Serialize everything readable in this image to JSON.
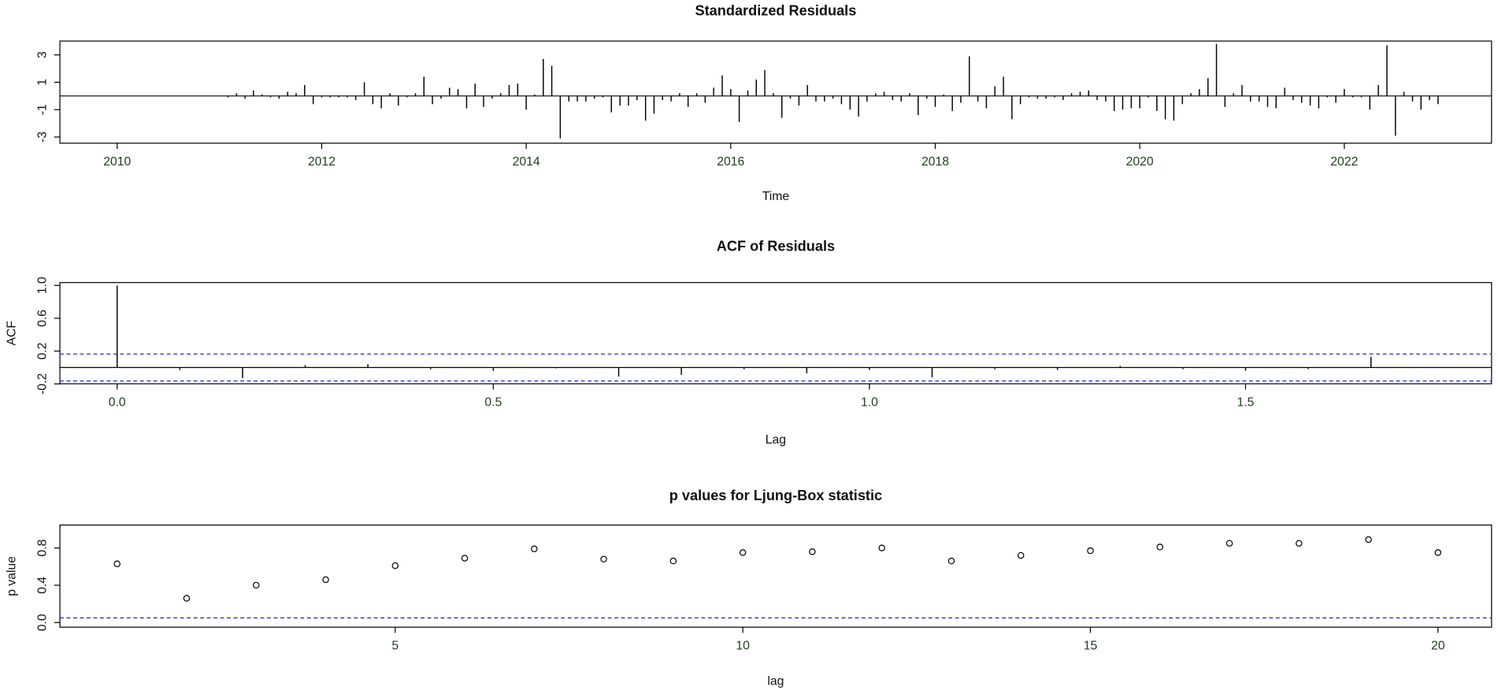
{
  "chart_data": [
    {
      "type": "spike",
      "title": "Standardized Residuals",
      "xlabel": "Time",
      "color": "#000000",
      "x": [
        2011.083,
        2011.167,
        2011.25,
        2011.333,
        2011.417,
        2011.5,
        2011.583,
        2011.667,
        2011.75,
        2011.833,
        2011.917,
        2012,
        2012.083,
        2012.167,
        2012.25,
        2012.333,
        2012.417,
        2012.5,
        2012.583,
        2012.667,
        2012.75,
        2012.833,
        2012.917,
        2013,
        2013.083,
        2013.167,
        2013.25,
        2013.333,
        2013.417,
        2013.5,
        2013.583,
        2013.667,
        2013.75,
        2013.833,
        2013.917,
        2014,
        2014.083,
        2014.167,
        2014.25,
        2014.333,
        2014.417,
        2014.5,
        2014.583,
        2014.667,
        2014.75,
        2014.833,
        2014.917,
        2015,
        2015.083,
        2015.167,
        2015.25,
        2015.333,
        2015.417,
        2015.5,
        2015.583,
        2015.667,
        2015.75,
        2015.833,
        2015.917,
        2016,
        2016.083,
        2016.167,
        2016.25,
        2016.333,
        2016.417,
        2016.5,
        2016.583,
        2016.667,
        2016.75,
        2016.833,
        2016.917,
        2017,
        2017.083,
        2017.167,
        2017.25,
        2017.333,
        2017.417,
        2017.5,
        2017.583,
        2017.667,
        2017.75,
        2017.833,
        2017.917,
        2018,
        2018.083,
        2018.167,
        2018.25,
        2018.333,
        2018.417,
        2018.5,
        2018.583,
        2018.667,
        2018.75,
        2018.833,
        2018.917,
        2019,
        2019.083,
        2019.167,
        2019.25,
        2019.333,
        2019.417,
        2019.5,
        2019.583,
        2019.667,
        2019.75,
        2019.833,
        2019.917,
        2020,
        2020.083,
        2020.167,
        2020.25,
        2020.333,
        2020.417,
        2020.5,
        2020.583,
        2020.667,
        2020.75,
        2020.833,
        2020.917,
        2021,
        2021.083,
        2021.167,
        2021.25,
        2021.333,
        2021.417,
        2021.5,
        2021.583,
        2021.667,
        2021.75,
        2021.833,
        2021.917,
        2022,
        2022.083,
        2022.167,
        2022.25,
        2022.333,
        2022.417,
        2022.5,
        2022.583,
        2022.667,
        2022.75,
        2022.833,
        2022.917
      ],
      "values": [
        -0.1,
        0.2,
        -0.2,
        0.4,
        0.1,
        -0.1,
        -0.2,
        0.3,
        0.2,
        0.8,
        -0.6,
        -0.1,
        -0.1,
        -0.1,
        -0.1,
        -0.3,
        1.0,
        -0.6,
        -0.9,
        0.2,
        -0.7,
        -0.1,
        0.2,
        1.4,
        -0.6,
        -0.2,
        0.6,
        0.5,
        -0.9,
        0.9,
        -0.8,
        -0.2,
        0.2,
        0.8,
        0.9,
        -1.0,
        0.1,
        2.7,
        2.2,
        -3.1,
        -0.4,
        -0.4,
        -0.4,
        -0.2,
        -0.1,
        -1.2,
        -0.7,
        -0.7,
        -0.3,
        -1.8,
        -1.3,
        -0.3,
        -0.4,
        0.2,
        -0.8,
        0.2,
        -0.5,
        0.6,
        1.5,
        0.5,
        -1.9,
        0.4,
        1.2,
        1.9,
        0.2,
        -1.6,
        -0.2,
        -0.7,
        0.8,
        -0.4,
        -0.4,
        -0.2,
        -0.6,
        -1.0,
        -1.5,
        -0.4,
        0.2,
        0.3,
        -0.3,
        -0.4,
        0.2,
        -1.4,
        -0.2,
        -0.8,
        0.1,
        -1.1,
        -0.5,
        2.9,
        -0.4,
        -0.9,
        0.7,
        1.4,
        -1.7,
        -0.6,
        -0.1,
        -0.2,
        -0.2,
        -0.1,
        -0.3,
        0.2,
        0.3,
        0.4,
        -0.3,
        -0.4,
        -1.1,
        -1.0,
        -0.9,
        -0.9,
        -0.1,
        -1.1,
        -1.7,
        -1.8,
        -0.6,
        0.2,
        0.5,
        1.3,
        3.8,
        -0.8,
        0.2,
        0.8,
        -0.4,
        -0.4,
        -0.8,
        -0.9,
        0.6,
        -0.3,
        -0.5,
        -0.7,
        -0.9,
        -0.1,
        -0.5,
        0.5,
        -0.1,
        -0.1,
        -1.0,
        0.8,
        3.7,
        -2.9,
        0.3,
        -0.4,
        -1.0,
        -0.3,
        -0.6
      ],
      "xlim": [
        2009.44,
        2023.44
      ],
      "xticks": [
        2010,
        2012,
        2014,
        2016,
        2018,
        2020,
        2022
      ],
      "ylim": [
        -3.45,
        4.01
      ],
      "yticks": [
        -3,
        -1,
        1,
        3
      ]
    },
    {
      "type": "spike",
      "title": "ACF of Residuals",
      "xlabel": "Lag",
      "ylabel": "ACF",
      "color": "#000000",
      "x": [
        0,
        0.0833,
        0.1667,
        0.25,
        0.3333,
        0.4167,
        0.5,
        0.5833,
        0.6667,
        0.75,
        0.8333,
        0.9167,
        1,
        1.0833,
        1.1667,
        1.25,
        1.3333,
        1.4167,
        1.5,
        1.5833,
        1.6667
      ],
      "values": [
        1.0,
        -0.03,
        -0.13,
        0.03,
        0.04,
        -0.02,
        -0.04,
        -0.01,
        -0.11,
        -0.09,
        -0.02,
        -0.07,
        -0.03,
        -0.12,
        -0.02,
        -0.03,
        0.02,
        -0.02,
        -0.04,
        -0.02,
        0.13
      ],
      "xlim": [
        -0.0761,
        1.827
      ],
      "xticks": [
        {
          "value": 0,
          "label": "0.0"
        },
        0.5,
        {
          "value": 1,
          "label": "1.0"
        },
        1.5
      ],
      "ylim": [
        -0.198,
        1.035
      ],
      "yticks": [
        -0.2,
        0.2,
        0.6,
        {
          "value": 1,
          "label": "1.0"
        }
      ],
      "hlines": [
        {
          "value": 0.164,
          "color": "#3b3bd6",
          "dashed": true
        },
        {
          "value": -0.164,
          "color": "#3b3bd6",
          "dashed": true
        }
      ]
    },
    {
      "type": "scatter",
      "title": "p values for Ljung-Box statistic",
      "xlabel": "lag",
      "ylabel": "p value",
      "color": "#000000",
      "x": [
        1,
        2,
        3,
        4,
        5,
        6,
        7,
        8,
        9,
        10,
        11,
        12,
        13,
        14,
        15,
        16,
        17,
        18,
        19,
        20
      ],
      "values": [
        0.63,
        0.26,
        0.4,
        0.46,
        0.61,
        0.69,
        0.79,
        0.68,
        0.66,
        0.75,
        0.76,
        0.8,
        0.66,
        0.72,
        0.77,
        0.81,
        0.85,
        0.85,
        0.89,
        0.75
      ],
      "xlim": [
        0.177,
        20.77
      ],
      "xticks": [
        5,
        10,
        15,
        20
      ],
      "ylim": [
        -0.05,
        1.046
      ],
      "yticks": [
        {
          "value": 0,
          "label": "0.0"
        },
        0.4,
        0.8
      ],
      "hlines": [
        {
          "value": 0.05,
          "color": "#3b3bd6",
          "dashed": true
        }
      ]
    }
  ]
}
